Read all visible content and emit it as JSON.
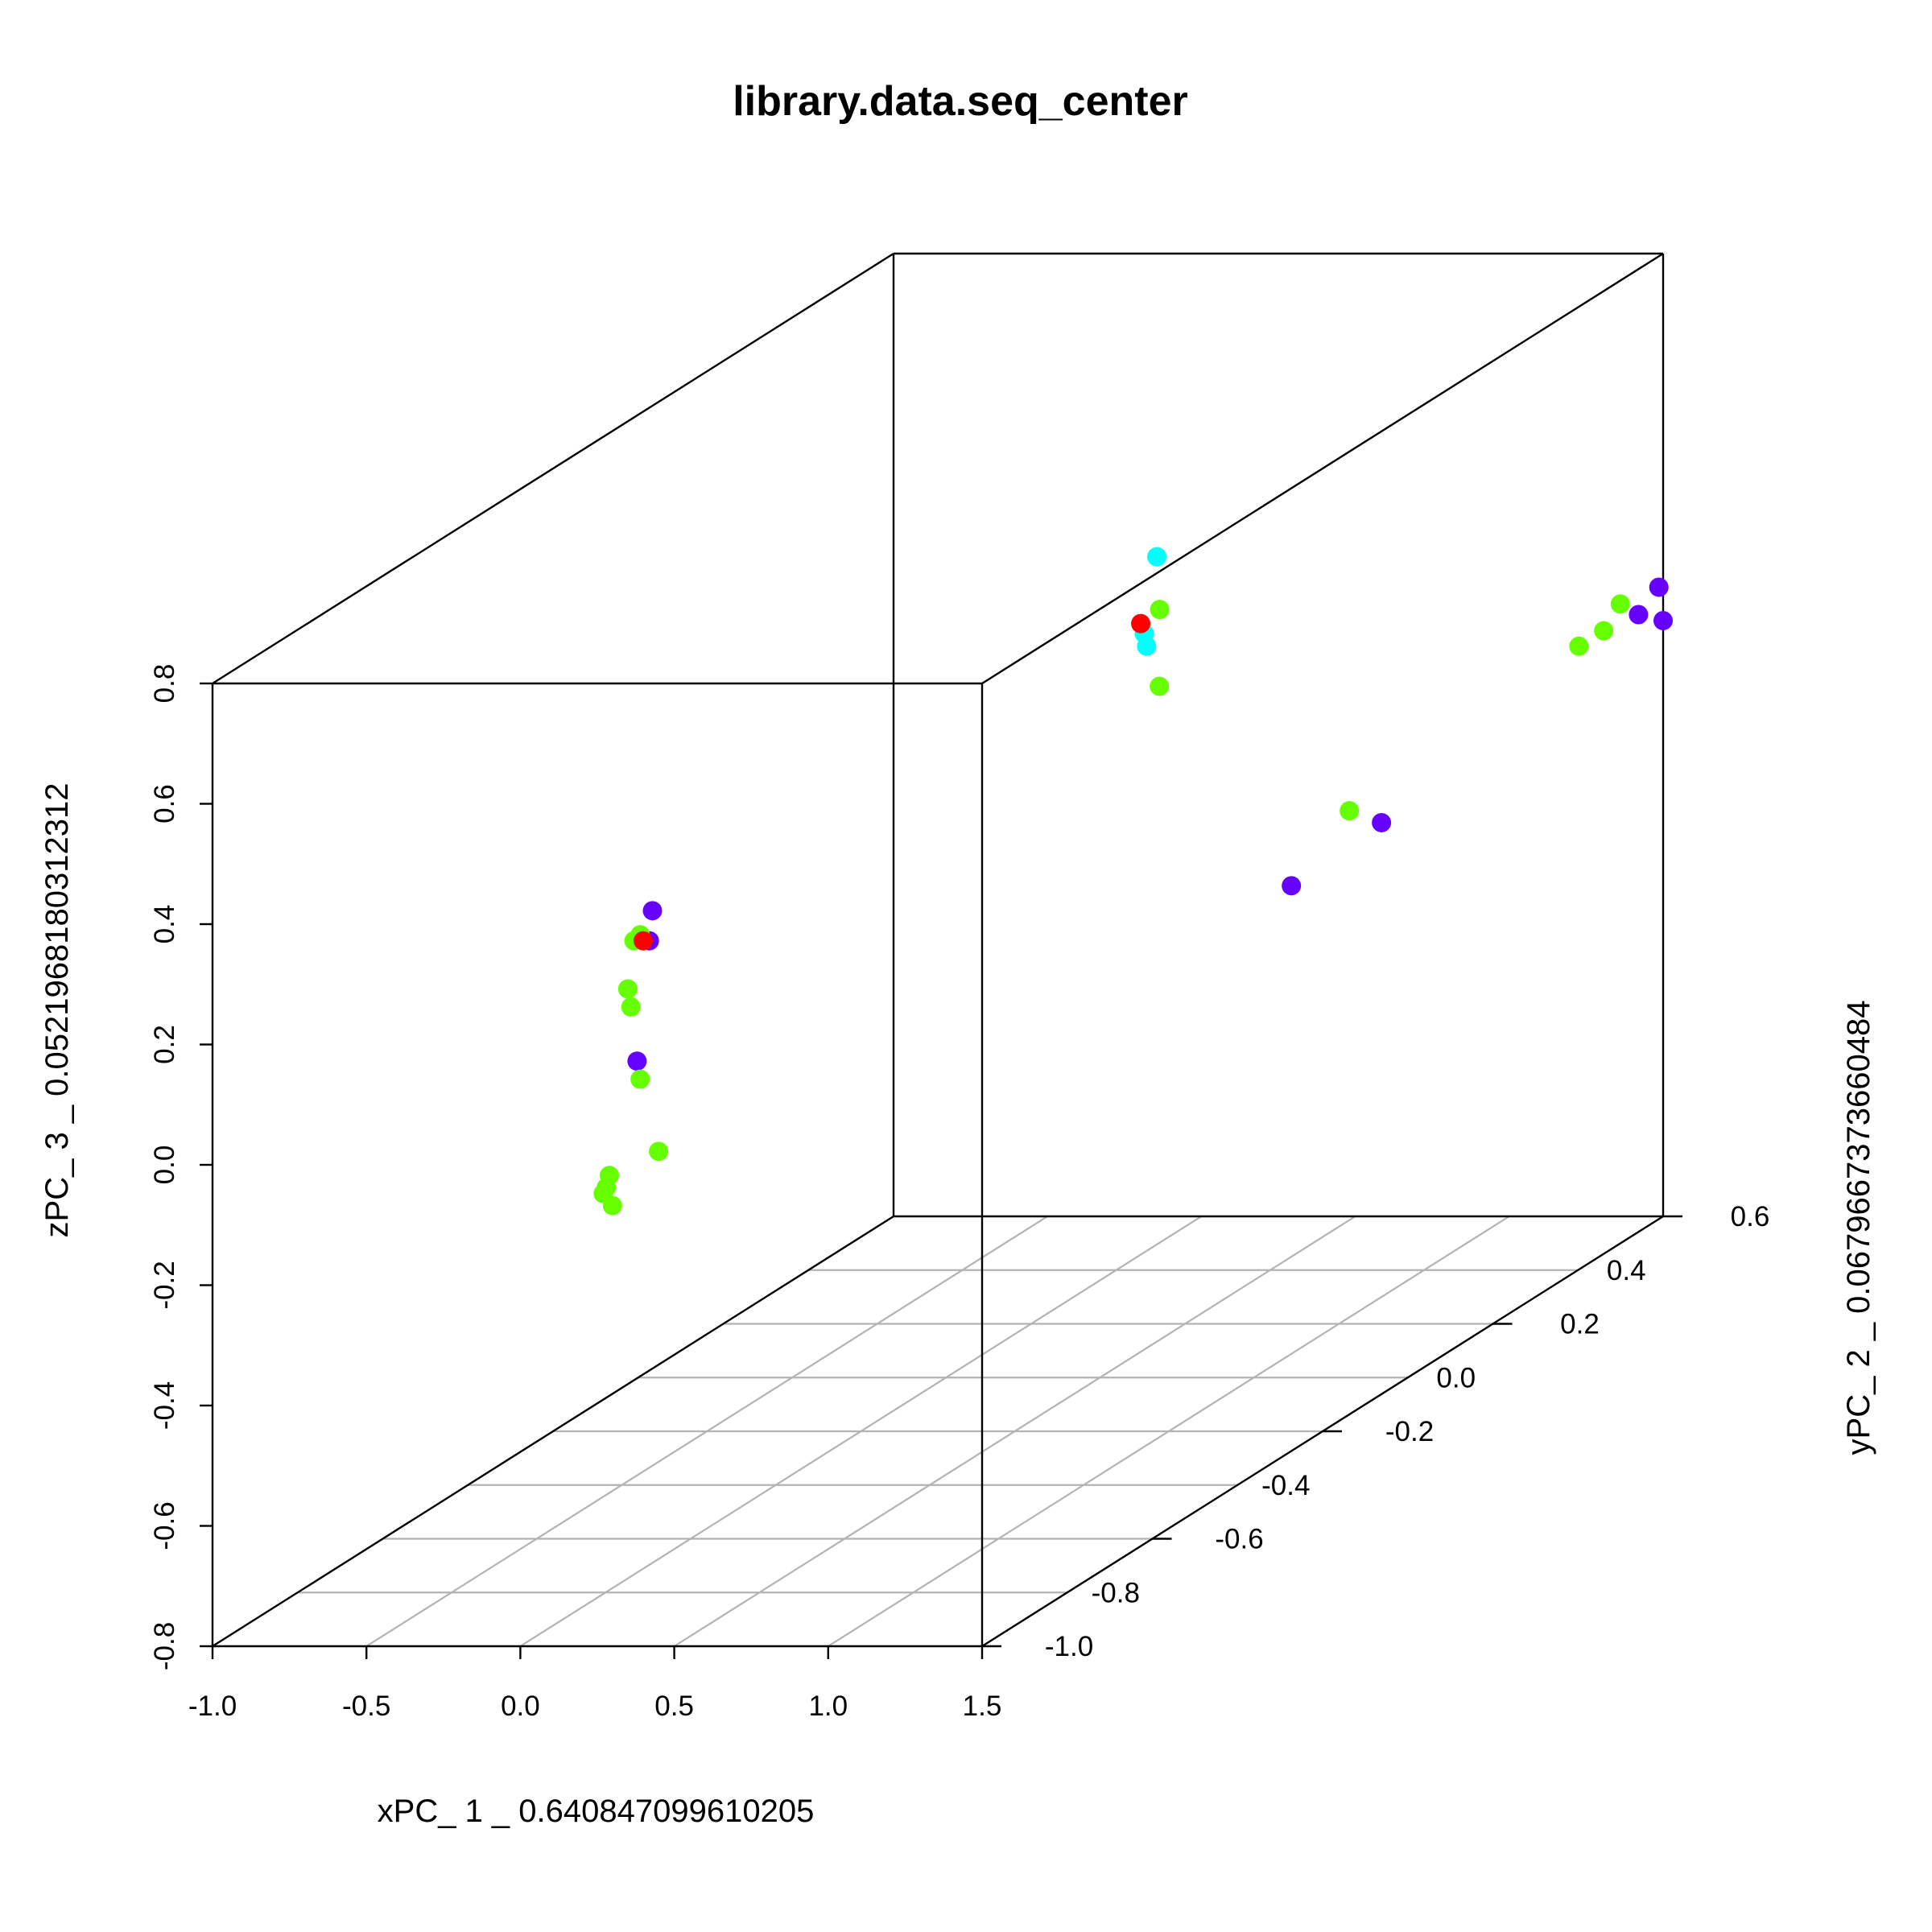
{
  "chart_data": {
    "type": "scatter3d",
    "title": "library.data.seq_center",
    "xlabel": "xPC_ 1 _ 0.640847099610205",
    "ylabel": "yPC_ 2 _ 0.0679667373660484",
    "zlabel": "zPC_ 3 _ 0.0521968180312312",
    "xlim": [
      -1.0,
      1.5
    ],
    "ylim": [
      -1.0,
      0.6
    ],
    "zlim": [
      -0.8,
      0.8
    ],
    "x_ticks": [
      "-1.0",
      "-0.5",
      "0.0",
      "0.5",
      "1.0",
      "1.5"
    ],
    "y_ticks": [
      "-1.0",
      "-0.8",
      "-0.6",
      "-0.4",
      "-0.2",
      "0.0",
      "0.2",
      "0.4",
      "0.6"
    ],
    "z_ticks": [
      "-0.8",
      "-0.6",
      "-0.4",
      "-0.2",
      "0.0",
      "0.2",
      "0.4",
      "0.6",
      "0.8"
    ],
    "grid": "xy-floor",
    "colors": {
      "purple": "#6600ff",
      "green": "#66ff00",
      "cyan": "#00ffff",
      "red": "#ff0000"
    },
    "points": [
      {
        "x": 0.92,
        "y": -0.17,
        "z": 0.64,
        "c": "cyan"
      },
      {
        "x": 0.86,
        "y": -0.12,
        "z": 0.53,
        "c": "green"
      },
      {
        "x": 0.84,
        "y": -0.15,
        "z": 0.52,
        "c": "red"
      },
      {
        "x": 0.81,
        "y": -0.12,
        "z": 0.49,
        "c": "cyan"
      },
      {
        "x": 0.79,
        "y": -0.1,
        "z": 0.46,
        "c": "cyan"
      },
      {
        "x": 0.79,
        "y": -0.07,
        "z": 0.38,
        "c": "green"
      },
      {
        "x": 0.36,
        "y": -0.95,
        "z": 0.4,
        "c": "purple"
      },
      {
        "x": 0.35,
        "y": -0.95,
        "z": 0.35,
        "c": "purple"
      },
      {
        "x": 0.32,
        "y": -0.95,
        "z": 0.36,
        "c": "green"
      },
      {
        "x": 0.3,
        "y": -0.95,
        "z": 0.35,
        "c": "green"
      },
      {
        "x": 0.33,
        "y": -0.95,
        "z": 0.35,
        "c": "red"
      },
      {
        "x": 0.28,
        "y": -0.95,
        "z": 0.27,
        "c": "green"
      },
      {
        "x": 0.29,
        "y": -0.95,
        "z": 0.24,
        "c": "green"
      },
      {
        "x": 0.31,
        "y": -0.95,
        "z": 0.15,
        "c": "purple"
      },
      {
        "x": 0.32,
        "y": -0.95,
        "z": 0.12,
        "c": "green"
      },
      {
        "x": 0.38,
        "y": -0.95,
        "z": 0.0,
        "c": "green"
      },
      {
        "x": 0.22,
        "y": -0.95,
        "z": -0.04,
        "c": "green"
      },
      {
        "x": 0.21,
        "y": -0.95,
        "z": -0.06,
        "c": "green"
      },
      {
        "x": 0.2,
        "y": -0.95,
        "z": -0.07,
        "c": "green"
      },
      {
        "x": 0.23,
        "y": -0.95,
        "z": -0.09,
        "c": "green"
      },
      {
        "x": 1.49,
        "y": -0.13,
        "z": 0.2,
        "c": "green"
      },
      {
        "x": 1.47,
        "y": -0.04,
        "z": 0.14,
        "c": "purple"
      },
      {
        "x": 1.44,
        "y": -0.23,
        "z": 0.12,
        "c": "purple"
      },
      {
        "x": 1.42,
        "y": 0.46,
        "z": 0.21,
        "c": "green"
      },
      {
        "x": 1.39,
        "y": 0.54,
        "z": 0.2,
        "c": "green"
      },
      {
        "x": 1.43,
        "y": 0.55,
        "z": 0.24,
        "c": "green"
      },
      {
        "x": 1.42,
        "y": 0.6,
        "z": 0.2,
        "c": "purple"
      },
      {
        "x": 1.5,
        "y": 0.59,
        "z": 0.25,
        "c": "purple"
      },
      {
        "x": 1.5,
        "y": 0.6,
        "z": 0.19,
        "c": "purple"
      }
    ]
  }
}
